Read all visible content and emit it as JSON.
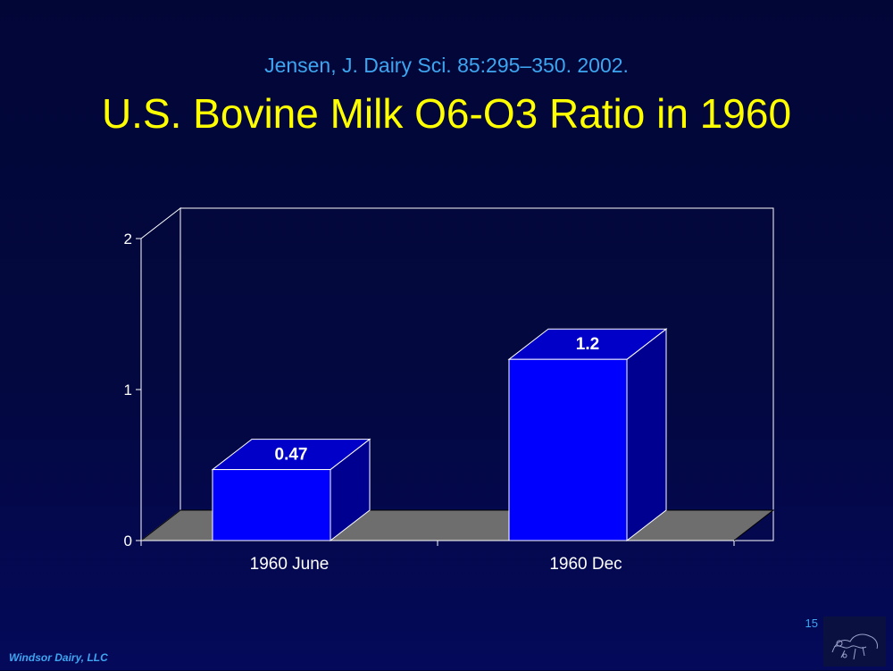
{
  "slide": {
    "citation": "Jensen, J. Dairy Sci. 85:295–350. 2002.",
    "title": "U.S. Bovine Milk O6-O3 Ratio in 1960",
    "page_number": "15",
    "footer": "Windsor Dairy, LLC",
    "logo_icon": "windsor-dairy-logo-icon"
  },
  "colors": {
    "title": "#ffff00",
    "citation": "#3ea6f0",
    "bar_front": "#0000ff",
    "bar_side": "#000090",
    "bar_top": "#0000c8",
    "floor": "#6e6e6e"
  },
  "chart_data": {
    "type": "bar",
    "style": "3d",
    "categories": [
      "1960 June",
      "1960 Dec"
    ],
    "values": [
      0.47,
      1.2
    ],
    "data_labels": [
      "0.47",
      "1.2"
    ],
    "y_ticks": [
      "0",
      "1",
      "2"
    ],
    "ylim": [
      0,
      2
    ],
    "grid": false,
    "legend": "none",
    "xlabel": "",
    "ylabel": ""
  }
}
